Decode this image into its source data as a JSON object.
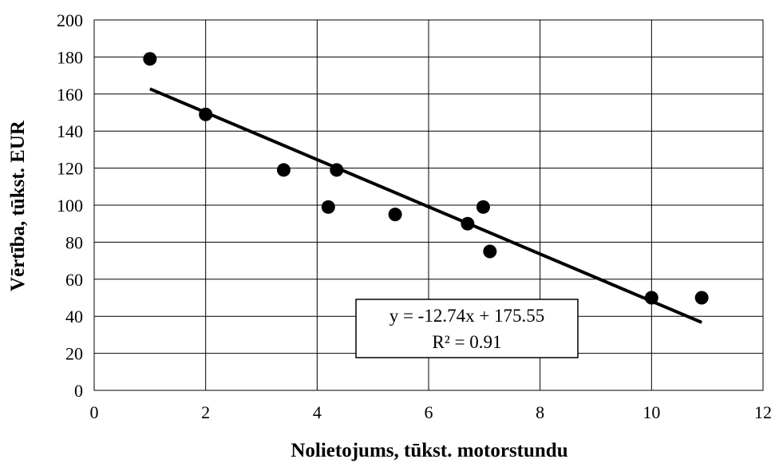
{
  "chart_data": {
    "type": "scatter",
    "xlabel": "Nolietojums, tūkst. motorstundu",
    "ylabel": "Vērtība, tūkst. EUR",
    "xlim": [
      0,
      12
    ],
    "ylim": [
      0,
      200
    ],
    "x_ticks": [
      0,
      2,
      4,
      6,
      8,
      10,
      12
    ],
    "y_ticks": [
      0,
      20,
      40,
      60,
      80,
      100,
      120,
      140,
      160,
      180,
      200
    ],
    "grid": true,
    "points": [
      {
        "x": 1.0,
        "y": 179
      },
      {
        "x": 2.0,
        "y": 149
      },
      {
        "x": 3.4,
        "y": 119
      },
      {
        "x": 4.2,
        "y": 99
      },
      {
        "x": 4.35,
        "y": 119
      },
      {
        "x": 5.4,
        "y": 95
      },
      {
        "x": 6.7,
        "y": 90
      },
      {
        "x": 6.98,
        "y": 99
      },
      {
        "x": 7.1,
        "y": 75
      },
      {
        "x": 10.0,
        "y": 50
      },
      {
        "x": 10.9,
        "y": 50
      }
    ],
    "trendline": {
      "type": "linear",
      "slope": -12.74,
      "intercept": 175.55,
      "x_range": [
        1.0,
        10.9
      ]
    },
    "annotation": {
      "equation": "y = -12.74x + 175.55",
      "r_squared": "R² = 0.91"
    },
    "marker_color": "#000000",
    "line_color": "#000000"
  }
}
